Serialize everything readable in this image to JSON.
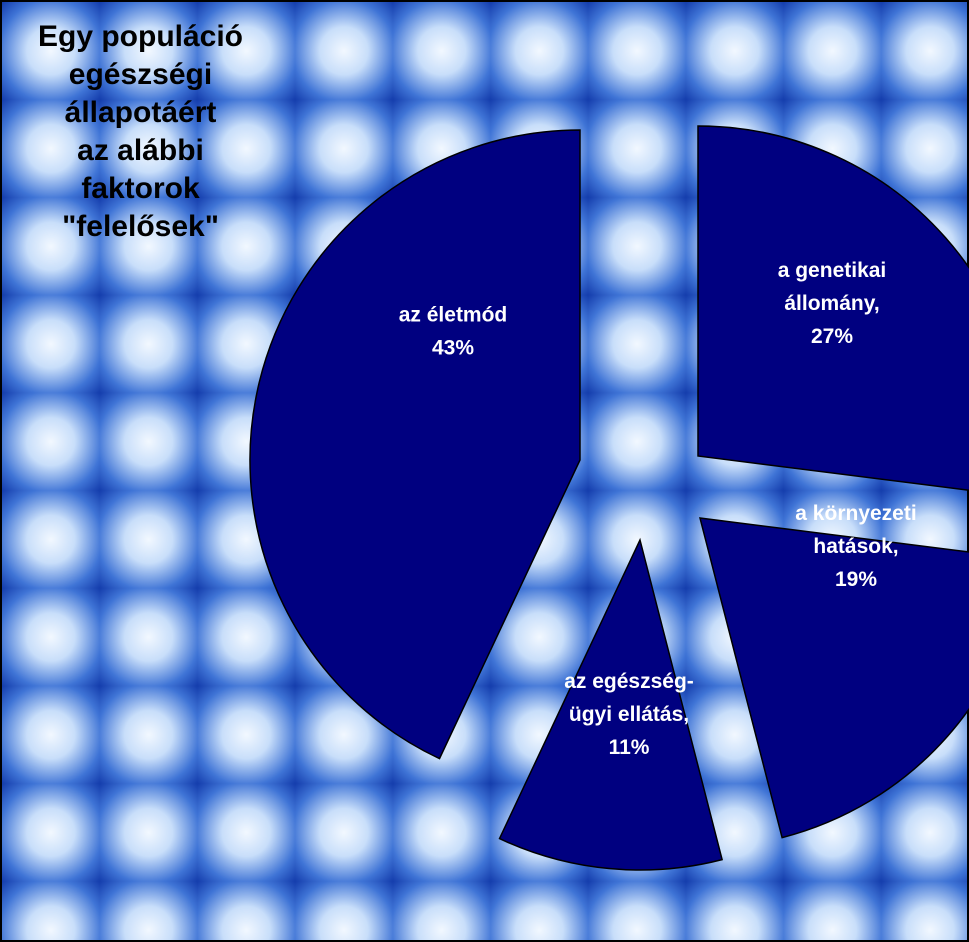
{
  "chart_data": {
    "type": "pie",
    "exploded": true,
    "title_lines": [
      "Egy populáció",
      "egészségi",
      "állapotáért",
      "az alábbi",
      "faktorok",
      "\"felelősek\""
    ],
    "slices": [
      {
        "name": "a genetikai állomány",
        "value": 27,
        "label_lines": [
          "a genetikai",
          "állomány,",
          "27%"
        ]
      },
      {
        "name": "a környezeti hatások",
        "value": 19,
        "label_lines": [
          "a környezeti",
          "hatások,",
          "19%"
        ]
      },
      {
        "name": "az egészségügyi ellátás",
        "value": 11,
        "label_lines": [
          "az egészség-",
          "ügyi ellátás,",
          "11%"
        ]
      },
      {
        "name": "az életmód",
        "value": 43,
        "label_lines": [
          "az életmód",
          "43%"
        ]
      }
    ],
    "slice_color": "#000080",
    "background_colors": [
      "#1a4fc4",
      "#e8f2ff"
    ]
  }
}
